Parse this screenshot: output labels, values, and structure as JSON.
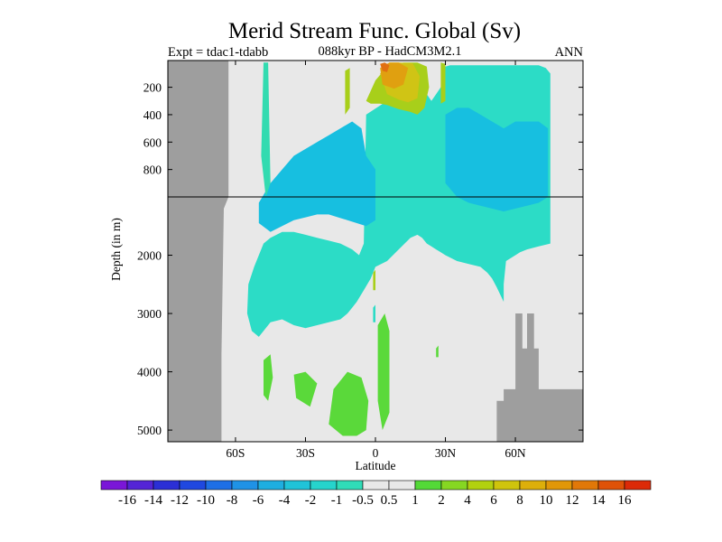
{
  "chart_data": {
    "type": "heatmap",
    "title": "Merid Stream Func. Global (Sv)",
    "subtitle_left": "Expt = tdac1-tdabb",
    "subtitle_center": "088kyr BP - HadCM3M2.1",
    "subtitle_right": "ANN",
    "xlabel": "Latitude",
    "ylabel": "Depth (in m)",
    "x_ticks": [
      {
        "value": -60,
        "label": "60S"
      },
      {
        "value": -30,
        "label": "30S"
      },
      {
        "value": 0,
        "label": "0"
      },
      {
        "value": 30,
        "label": "30N"
      },
      {
        "value": 60,
        "label": "60N"
      }
    ],
    "y_ticks_upper": [
      {
        "value": 200,
        "label": "200"
      },
      {
        "value": 400,
        "label": "400"
      },
      {
        "value": 600,
        "label": "600"
      },
      {
        "value": 800,
        "label": "800"
      }
    ],
    "y_ticks_lower": [
      {
        "value": 2000,
        "label": "2000"
      },
      {
        "value": 3000,
        "label": "3000"
      },
      {
        "value": 4000,
        "label": "4000"
      },
      {
        "value": 5000,
        "label": "5000"
      }
    ],
    "xlim": [
      -89,
      89
    ],
    "ylim_upper": [
      5,
      1000
    ],
    "ylim_lower": [
      1000,
      5200
    ],
    "colorbar": {
      "colors": [
        "#7a16d8",
        "#5424d6",
        "#2b2fd6",
        "#1f48e0",
        "#1e6fe6",
        "#1f92e6",
        "#1eaee0",
        "#20c3d8",
        "#26d4cc",
        "#30dcb8",
        "#e8e8e8",
        "#e8e8e8",
        "#53d937",
        "#86d722",
        "#b2d10f",
        "#cfc40c",
        "#ddaf0a",
        "#e19708",
        "#e17808",
        "#df5208",
        "#dc2a08"
      ],
      "labels": [
        "-16",
        "-14",
        "-12",
        "-10",
        "-8",
        "-6",
        "-4",
        "-2",
        "-1",
        "-0.5",
        "0.5",
        "1",
        "2",
        "4",
        "6",
        "8",
        "10",
        "12",
        "14",
        "16"
      ]
    },
    "colors": {
      "land": "#9e9e9e",
      "background": "#e8e8e8",
      "cyan": "#18cfd6",
      "cyan_light": "#2cdcc6",
      "blue": "#17bfe0",
      "teal": "#32dbb0",
      "green": "#5ad93a",
      "yellow_green": "#a8cf1a",
      "yellow": "#d0c415",
      "orange": "#e0a010",
      "red_orange": "#e07010"
    },
    "regions": [
      {
        "level": "cyan_light",
        "lat": [
          -55,
          -54.5,
          -52,
          -50,
          -48,
          -45,
          -40,
          -35,
          -30,
          -25,
          -20,
          -15,
          -10,
          -7,
          -5,
          -4,
          5,
          10,
          12,
          22,
          24,
          26,
          28,
          29,
          30,
          32,
          34,
          40,
          45,
          50,
          55,
          60,
          65,
          70,
          73,
          75,
          75,
          70,
          65,
          62,
          60,
          58,
          56,
          55,
          55,
          52,
          50,
          48,
          45,
          40,
          35,
          30,
          28,
          26,
          24,
          22,
          20,
          18,
          15,
          10,
          5,
          0,
          -2,
          -5,
          -8,
          -10,
          -12,
          -15,
          -20,
          -25,
          -30,
          -35,
          -40,
          -45,
          -48,
          -50,
          -53,
          -55
        ],
        "depth": [
          3000,
          2500,
          2200,
          2000,
          1800,
          1700,
          1600,
          1600,
          1650,
          1700,
          1750,
          1800,
          1900,
          2000,
          1800,
          400,
          300,
          250,
          200,
          250,
          300,
          250,
          200,
          100,
          50,
          40,
          40,
          40,
          40,
          40,
          40,
          40,
          40,
          40,
          60,
          100,
          1800,
          1850,
          1900,
          1950,
          2000,
          2050,
          2100,
          2500,
          2800,
          2550,
          2400,
          2300,
          2200,
          2150,
          2100,
          2000,
          1950,
          1900,
          1850,
          1800,
          1700,
          1650,
          1700,
          1900,
          2100,
          2200,
          2400,
          2600,
          2800,
          2900,
          3000,
          3100,
          3150,
          3200,
          3250,
          3200,
          3100,
          3150,
          3300,
          3400,
          3300,
          3000
        ]
      },
      {
        "level": "blue",
        "lat": [
          -50,
          -45,
          -40,
          -35,
          -30,
          -25,
          -20,
          -15,
          -10,
          -6,
          -4,
          0,
          0,
          -4,
          -8,
          -12,
          -16,
          -20,
          -25,
          -30,
          -35,
          -40,
          -45,
          -50
        ],
        "depth": [
          1100,
          900,
          800,
          700,
          650,
          600,
          550,
          500,
          450,
          500,
          700,
          800,
          1400,
          1500,
          1450,
          1400,
          1350,
          1300,
          1300,
          1350,
          1400,
          1500,
          1600,
          1450
        ]
      },
      {
        "level": "blue",
        "lat": [
          30,
          35,
          40,
          45,
          50,
          55,
          60,
          65,
          70,
          74,
          74,
          70,
          65,
          60,
          55,
          50,
          45,
          40,
          35,
          30
        ],
        "depth": [
          400,
          350,
          350,
          400,
          450,
          500,
          450,
          450,
          450,
          500,
          1000,
          1100,
          1150,
          1200,
          1250,
          1200,
          1150,
          1100,
          1000,
          900
        ]
      },
      {
        "level": "yellow_green",
        "lat": [
          -4,
          0,
          5,
          12,
          18,
          22,
          23,
          21,
          18,
          15,
          10,
          5,
          2,
          -2,
          -4
        ],
        "depth": [
          300,
          150,
          50,
          20,
          20,
          50,
          200,
          350,
          400,
          380,
          360,
          330,
          320,
          320,
          300
        ]
      },
      {
        "level": "yellow",
        "lat": [
          2,
          6,
          10,
          16,
          19,
          18,
          14,
          10,
          5,
          2
        ],
        "depth": [
          100,
          20,
          20,
          25,
          120,
          280,
          310,
          290,
          250,
          100
        ]
      },
      {
        "level": "orange",
        "lat": [
          2,
          6,
          10,
          14,
          12,
          8,
          3,
          2
        ],
        "depth": [
          60,
          20,
          20,
          60,
          180,
          210,
          180,
          60
        ]
      },
      {
        "level": "red_orange",
        "lat": [
          2,
          4,
          6,
          5,
          3,
          2
        ],
        "depth": [
          30,
          20,
          40,
          90,
          80,
          30
        ]
      },
      {
        "level": "yellow_green",
        "lat": [
          -13,
          -11,
          -11,
          -13
        ],
        "depth": [
          80,
          60,
          350,
          400
        ]
      },
      {
        "level": "yellow_green",
        "lat": [
          28,
          30,
          30,
          28
        ],
        "depth": [
          20,
          30,
          300,
          320
        ]
      },
      {
        "level": "teal",
        "lat": [
          -48,
          -46,
          -45,
          -47,
          -49
        ],
        "depth": [
          20,
          20,
          900,
          1000,
          700
        ]
      },
      {
        "level": "green",
        "lat": [
          -48,
          -45,
          -44,
          -46,
          -48
        ],
        "depth": [
          3800,
          3700,
          4100,
          4500,
          4400
        ]
      },
      {
        "level": "green",
        "lat": [
          -35,
          -30,
          -25,
          -28,
          -34
        ],
        "depth": [
          4050,
          4000,
          4200,
          4600,
          4450
        ]
      },
      {
        "level": "green",
        "lat": [
          -18,
          -12,
          -6,
          -3,
          -4,
          -8,
          -14,
          -20,
          -18
        ],
        "depth": [
          4300,
          4000,
          4100,
          4500,
          5000,
          5100,
          5100,
          4900,
          4300
        ]
      },
      {
        "level": "green",
        "lat": [
          1,
          4,
          6,
          6,
          3,
          1
        ],
        "depth": [
          3200,
          3000,
          3300,
          4700,
          5000,
          4500
        ]
      },
      {
        "level": "yellow_green",
        "lat": [
          -1,
          0,
          0,
          -1
        ],
        "depth": [
          2300,
          2250,
          2600,
          2600
        ]
      },
      {
        "level": "cyan_light",
        "lat": [
          -1,
          0,
          0,
          -1
        ],
        "depth": [
          2900,
          2850,
          3150,
          3150
        ]
      },
      {
        "level": "green",
        "lat": [
          26,
          27,
          27,
          26
        ],
        "depth": [
          3600,
          3550,
          3750,
          3750
        ]
      }
    ],
    "land": [
      {
        "lat": [
          -89,
          -89,
          -88,
          -83,
          -83,
          -78,
          -78,
          -76,
          -76,
          -73,
          -73,
          -70,
          -70,
          -89
        ],
        "depth": [
          5200,
          5,
          5,
          5,
          400,
          400,
          3000,
          3000,
          3800,
          3800,
          4300,
          4300,
          5200,
          5200
        ]
      },
      {
        "lat": [
          -89,
          -63,
          -63,
          -65,
          -66,
          -66,
          -89
        ],
        "depth": [
          5,
          5,
          1000,
          1200,
          3700,
          5200,
          5200
        ]
      },
      {
        "lat": [
          52,
          52,
          55,
          55,
          60,
          60,
          63,
          63,
          65,
          65,
          68,
          68,
          70,
          70,
          73,
          73,
          89,
          89
        ],
        "depth": [
          5200,
          4500,
          4500,
          4300,
          4300,
          3000,
          3000,
          3600,
          3600,
          3000,
          3000,
          3600,
          3600,
          4300,
          4300,
          4300,
          4300,
          5200
        ]
      }
    ]
  }
}
